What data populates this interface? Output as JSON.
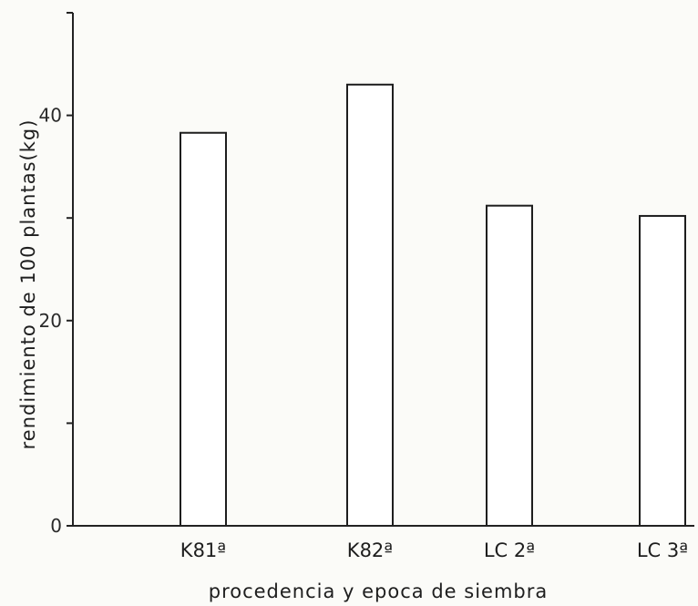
{
  "chart_data": {
    "type": "bar",
    "title": "",
    "xlabel": "procedencia y epoca de siembra",
    "ylabel": "rendimiento de 100 plantas(kg)",
    "categories": [
      "K81ª",
      "K82ª",
      "LC 2ª",
      "LC 3ª"
    ],
    "series": [
      {
        "values": [
          38.3,
          43.0,
          31.2,
          30.2
        ]
      }
    ],
    "ylim": [
      0,
      50
    ],
    "yticks": [
      0,
      10,
      20,
      30,
      40,
      50
    ],
    "ytick_labels": [
      "0",
      "",
      "20",
      "",
      "40",
      ""
    ],
    "grid": false,
    "legend": "none",
    "colors": {
      "bar_fill": "#ffffff",
      "bar_stroke": "#1e1e1e",
      "axis": "#222222"
    }
  }
}
